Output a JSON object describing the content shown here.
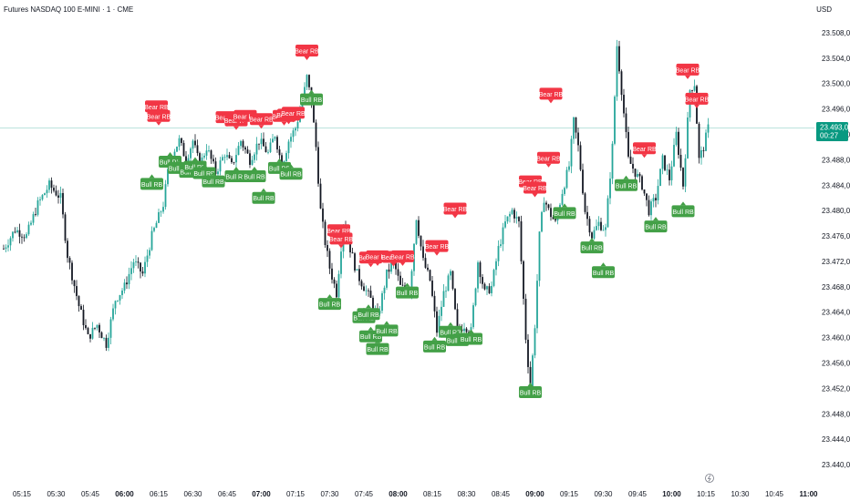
{
  "header": {
    "title": "Futures NASDAQ 100 E-MINI · 1 · CME",
    "currency": "USD"
  },
  "price_tag": {
    "price": "23.493,00",
    "countdown": "00:27",
    "color": "#089981"
  },
  "colors": {
    "up": "#26a69a",
    "down": "#131722",
    "bear_label": "#f23645",
    "bull_label": "#43a047",
    "current_line": "#089981",
    "axis_text": "#131722"
  },
  "chart_data": {
    "type": "candlestick",
    "title": "Futures NASDAQ 100 E-MINI · 1 · CME",
    "ylabel": "USD",
    "ylim": [
      23439,
      23511
    ],
    "y_ticks": [
      "23.508,00",
      "23.504,00",
      "23.500,00",
      "23.496,00",
      "23.492,00",
      "23.488,00",
      "23.484,00",
      "23.480,00",
      "23.476,00",
      "23.472,00",
      "23.468,00",
      "23.464,00",
      "23.460,00",
      "23.456,00",
      "23.452,00",
      "23.448,00",
      "23.444,00",
      "23.440,00"
    ],
    "y_tick_values": [
      23508,
      23504,
      23500,
      23496,
      23492,
      23488,
      23484,
      23480,
      23476,
      23472,
      23468,
      23464,
      23460,
      23456,
      23452,
      23448,
      23444,
      23440
    ],
    "x_ticks": [
      {
        "label": "05:15",
        "bold": false
      },
      {
        "label": "05:30",
        "bold": false
      },
      {
        "label": "05:45",
        "bold": false
      },
      {
        "label": "06:00",
        "bold": true
      },
      {
        "label": "06:15",
        "bold": false
      },
      {
        "label": "06:30",
        "bold": false
      },
      {
        "label": "06:45",
        "bold": false
      },
      {
        "label": "07:00",
        "bold": true
      },
      {
        "label": "07:15",
        "bold": false
      },
      {
        "label": "07:30",
        "bold": false
      },
      {
        "label": "07:45",
        "bold": false
      },
      {
        "label": "08:00",
        "bold": true
      },
      {
        "label": "08:15",
        "bold": false
      },
      {
        "label": "08:30",
        "bold": false
      },
      {
        "label": "08:45",
        "bold": false
      },
      {
        "label": "09:00",
        "bold": true
      },
      {
        "label": "09:15",
        "bold": false
      },
      {
        "label": "09:30",
        "bold": false
      },
      {
        "label": "09:45",
        "bold": false
      },
      {
        "label": "10:00",
        "bold": true
      },
      {
        "label": "10:15",
        "bold": false
      },
      {
        "label": "10:30",
        "bold": false
      },
      {
        "label": "10:45",
        "bold": false
      },
      {
        "label": "11:00",
        "bold": true
      }
    ],
    "time_start": "05:07",
    "minutes_per_tick": 15,
    "current_price": 23493,
    "price_path": [
      [
        "05:07",
        23474
      ],
      [
        "05:12",
        23477
      ],
      [
        "05:17",
        23476
      ],
      [
        "05:22",
        23481
      ],
      [
        "05:27",
        23484
      ],
      [
        "05:32",
        23482
      ],
      [
        "05:35",
        23473
      ],
      [
        "05:40",
        23465
      ],
      [
        "05:44",
        23460
      ],
      [
        "05:48",
        23462
      ],
      [
        "05:52",
        23459
      ],
      [
        "05:56",
        23466
      ],
      [
        "06:00",
        23468
      ],
      [
        "06:04",
        23472
      ],
      [
        "06:08",
        23470
      ],
      [
        "06:12",
        23476
      ],
      [
        "06:15",
        23479
      ],
      [
        "06:17",
        23481
      ],
      [
        "06:19",
        23486
      ],
      [
        "06:21",
        23489
      ],
      [
        "06:24",
        23491
      ],
      [
        "06:27",
        23488
      ],
      [
        "06:30",
        23491
      ],
      [
        "06:33",
        23487
      ],
      [
        "06:36",
        23490
      ],
      [
        "06:40",
        23486
      ],
      [
        "06:44",
        23489
      ],
      [
        "06:47",
        23487
      ],
      [
        "06:51",
        23491
      ],
      [
        "06:55",
        23488
      ],
      [
        "06:59",
        23491
      ],
      [
        "07:03",
        23489
      ],
      [
        "07:06",
        23492
      ],
      [
        "07:09",
        23487
      ],
      [
        "07:12",
        23491
      ],
      [
        "07:15",
        23493
      ],
      [
        "07:18",
        23497
      ],
      [
        "07:20",
        23501
      ],
      [
        "07:22",
        23497
      ],
      [
        "07:24",
        23490
      ],
      [
        "07:26",
        23480
      ],
      [
        "07:28",
        23475
      ],
      [
        "07:30",
        23471
      ],
      [
        "07:33",
        23467
      ],
      [
        "07:36",
        23478
      ],
      [
        "07:39",
        23474
      ],
      [
        "07:42",
        23470
      ],
      [
        "07:45",
        23468
      ],
      [
        "07:48",
        23466
      ],
      [
        "07:51",
        23463
      ],
      [
        "07:55",
        23470
      ],
      [
        "07:58",
        23472
      ],
      [
        "08:01",
        23468
      ],
      [
        "08:05",
        23467
      ],
      [
        "08:08",
        23479
      ],
      [
        "08:11",
        23472
      ],
      [
        "08:14",
        23469
      ],
      [
        "08:17",
        23461
      ],
      [
        "08:20",
        23467
      ],
      [
        "08:23",
        23470
      ],
      [
        "08:26",
        23461
      ],
      [
        "08:29",
        23462
      ],
      [
        "08:32",
        23461
      ],
      [
        "08:35",
        23472
      ],
      [
        "08:38",
        23467
      ],
      [
        "08:41",
        23468
      ],
      [
        "08:44",
        23474
      ],
      [
        "08:47",
        23478
      ],
      [
        "08:50",
        23480
      ],
      [
        "08:53",
        23478
      ],
      [
        "08:56",
        23460
      ],
      [
        "08:58",
        23452
      ],
      [
        "09:00",
        23462
      ],
      [
        "09:02",
        23476
      ],
      [
        "09:04",
        23482
      ],
      [
        "09:06",
        23480
      ],
      [
        "09:09",
        23478
      ],
      [
        "09:12",
        23483
      ],
      [
        "09:15",
        23487
      ],
      [
        "09:17",
        23494
      ],
      [
        "09:19",
        23490
      ],
      [
        "09:22",
        23480
      ],
      [
        "09:25",
        23476
      ],
      [
        "09:28",
        23478
      ],
      [
        "09:31",
        23477
      ],
      [
        "09:34",
        23490
      ],
      [
        "09:36",
        23506
      ],
      [
        "09:38",
        23499
      ],
      [
        "09:41",
        23488
      ],
      [
        "09:44",
        23486
      ],
      [
        "09:47",
        23484
      ],
      [
        "09:50",
        23480
      ],
      [
        "09:53",
        23482
      ],
      [
        "09:56",
        23488
      ],
      [
        "09:59",
        23485
      ],
      [
        "10:02",
        23492
      ],
      [
        "10:05",
        23484
      ],
      [
        "10:08",
        23499
      ],
      [
        "10:10",
        23500
      ],
      [
        "10:12",
        23488
      ],
      [
        "10:14",
        23490
      ],
      [
        "10:16",
        23493
      ]
    ],
    "annotations": [
      {
        "text": "Bear RB",
        "type": "bear",
        "time": "06:14",
        "price": 23496.4
      },
      {
        "text": "Bear RB",
        "type": "bear",
        "time": "06:15",
        "price": 23494.9
      },
      {
        "text": "Bear RB",
        "type": "bear",
        "time": "06:45",
        "price": 23494.7
      },
      {
        "text": "Bear RB",
        "type": "bear",
        "time": "06:49",
        "price": 23494.2
      },
      {
        "text": "Bear RB",
        "type": "bear",
        "time": "06:53",
        "price": 23494.9
      },
      {
        "text": "Bear RB",
        "type": "bear",
        "time": "07:00",
        "price": 23494.4
      },
      {
        "text": "Bear RB",
        "type": "bear",
        "time": "07:10",
        "price": 23494.9
      },
      {
        "text": "Bear RB",
        "type": "bear",
        "time": "07:12",
        "price": 23495.1
      },
      {
        "text": "Bear RB",
        "type": "bear",
        "time": "07:14",
        "price": 23495.4
      },
      {
        "text": "Bear RB",
        "type": "bear",
        "time": "07:20",
        "price": 23505.2
      },
      {
        "text": "Bear RB",
        "type": "bear",
        "time": "07:34",
        "price": 23476.9
      },
      {
        "text": "Bear RB",
        "type": "bear",
        "time": "07:35",
        "price": 23475.6
      },
      {
        "text": "Bear RB",
        "type": "bear",
        "time": "07:48",
        "price": 23472.6
      },
      {
        "text": "Bear RB",
        "type": "bear",
        "time": "07:51",
        "price": 23472.8
      },
      {
        "text": "Bear RB",
        "type": "bear",
        "time": "07:58",
        "price": 23472.7
      },
      {
        "text": "Bear RB",
        "type": "bear",
        "time": "08:02",
        "price": 23472.8
      },
      {
        "text": "Bear RB",
        "type": "bear",
        "time": "08:17",
        "price": 23474.4
      },
      {
        "text": "Bear RB",
        "type": "bear",
        "time": "08:25",
        "price": 23480.3
      },
      {
        "text": "Bear RB",
        "type": "bear",
        "time": "08:58",
        "price": 23484.6
      },
      {
        "text": "Bear RB",
        "type": "bear",
        "time": "09:00",
        "price": 23483.6
      },
      {
        "text": "Bear RB",
        "type": "bear",
        "time": "09:06",
        "price": 23488.3
      },
      {
        "text": "Bear RB",
        "type": "bear",
        "time": "09:07",
        "price": 23498.4
      },
      {
        "text": "Bear RB",
        "type": "bear",
        "time": "09:48",
        "price": 23489.8
      },
      {
        "text": "Bear RB",
        "type": "bear",
        "time": "10:07",
        "price": 23502.2
      },
      {
        "text": "Bear RB",
        "type": "bear",
        "time": "10:11",
        "price": 23497.6
      },
      {
        "text": "Bull RB",
        "type": "bull",
        "time": "06:12",
        "price": 23484.2
      },
      {
        "text": "Bull RB",
        "type": "bull",
        "time": "06:20",
        "price": 23487.7
      },
      {
        "text": "Bull RB",
        "type": "bull",
        "time": "06:24",
        "price": 23486.7
      },
      {
        "text": "Bull RB",
        "type": "bull",
        "time": "06:29",
        "price": 23486.1
      },
      {
        "text": "Bull RB",
        "type": "bull",
        "time": "06:31",
        "price": 23486.9
      },
      {
        "text": "Bull RB",
        "type": "bull",
        "time": "06:35",
        "price": 23485.9
      },
      {
        "text": "Bull RB",
        "type": "bull",
        "time": "06:39",
        "price": 23484.6
      },
      {
        "text": "Bull RB",
        "type": "bull",
        "time": "06:49",
        "price": 23485.4
      },
      {
        "text": "Bull RB",
        "type": "bull",
        "time": "06:57",
        "price": 23485.4
      },
      {
        "text": "Bull RB",
        "type": "bull",
        "time": "07:01",
        "price": 23482.0
      },
      {
        "text": "Bull RB",
        "type": "bull",
        "time": "07:08",
        "price": 23486.7
      },
      {
        "text": "Bull RB",
        "type": "bull",
        "time": "07:13",
        "price": 23485.8
      },
      {
        "text": "Bull RB",
        "type": "bull",
        "time": "07:22",
        "price": 23497.5
      },
      {
        "text": "Bull RB",
        "type": "bull",
        "time": "07:30",
        "price": 23465.3
      },
      {
        "text": "Bull RB",
        "type": "bull",
        "time": "07:45",
        "price": 23463.2
      },
      {
        "text": "Bull RB",
        "type": "bull",
        "time": "07:47",
        "price": 23463.7
      },
      {
        "text": "Bull RB",
        "type": "bull",
        "time": "07:48",
        "price": 23460.2
      },
      {
        "text": "Bull RB",
        "type": "bull",
        "time": "07:51",
        "price": 23458.2
      },
      {
        "text": "Bull RB",
        "type": "bull",
        "time": "07:55",
        "price": 23461.1
      },
      {
        "text": "Bull RB",
        "type": "bull",
        "time": "08:04",
        "price": 23467.1
      },
      {
        "text": "Bull RB",
        "type": "bull",
        "time": "08:16",
        "price": 23458.6
      },
      {
        "text": "Bull RB",
        "type": "bull",
        "time": "08:23",
        "price": 23460.9
      },
      {
        "text": "Bull RB",
        "type": "bull",
        "time": "08:26",
        "price": 23459.6
      },
      {
        "text": "Bull RB",
        "type": "bull",
        "time": "08:32",
        "price": 23459.8
      },
      {
        "text": "Bull RB",
        "type": "bull",
        "time": "08:58",
        "price": 23451.4
      },
      {
        "text": "Bull RB",
        "type": "bull",
        "time": "09:13",
        "price": 23479.6
      },
      {
        "text": "Bull RB",
        "type": "bull",
        "time": "09:25",
        "price": 23474.2
      },
      {
        "text": "Bull RB",
        "type": "bull",
        "time": "09:30",
        "price": 23470.3
      },
      {
        "text": "Bull RB",
        "type": "bull",
        "time": "09:40",
        "price": 23484.0
      },
      {
        "text": "Bull RB",
        "type": "bull",
        "time": "09:53",
        "price": 23477.5
      },
      {
        "text": "Bull RB",
        "type": "bull",
        "time": "10:05",
        "price": 23479.9
      }
    ]
  }
}
